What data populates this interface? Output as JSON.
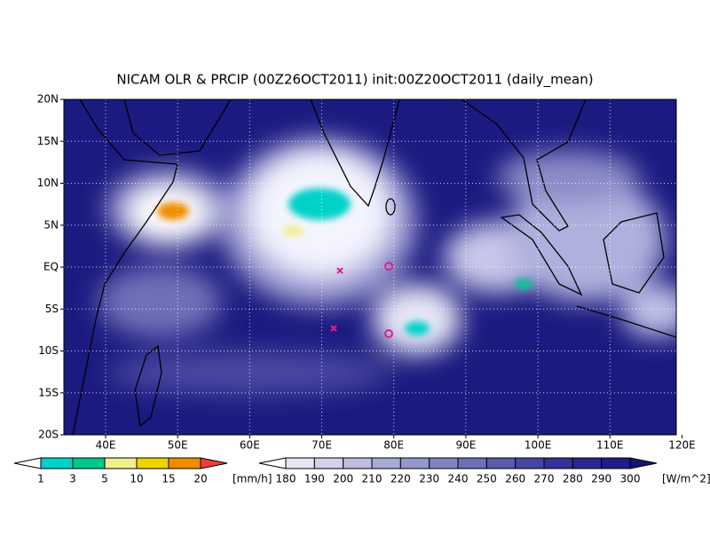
{
  "title": "NICAM OLR & PRCIP (00Z26OCT2011) init:00Z20OCT2011 (daily_mean)",
  "map": {
    "xtick_labels": [
      "40E",
      "50E",
      "60E",
      "70E",
      "80E",
      "90E",
      "100E",
      "110E",
      "120E"
    ],
    "ytick_labels": [
      "20N",
      "15N",
      "10N",
      "5N",
      "EQ",
      "5S",
      "10S",
      "15S",
      "20S"
    ]
  },
  "precip_colorbar": {
    "labels": [
      "1",
      "3",
      "5",
      "10",
      "15",
      "20"
    ],
    "unit": "[mm/h]",
    "colors": [
      "#ffffff",
      "#00d2c8",
      "#00c88c",
      "#f0f08c",
      "#f0d200",
      "#f08c00",
      "#f03c3c"
    ]
  },
  "olr_colorbar": {
    "labels": [
      "180",
      "190",
      "200",
      "210",
      "220",
      "230",
      "240",
      "250",
      "260",
      "270",
      "280",
      "290",
      "300"
    ],
    "unit": "[W/m^2]",
    "colors": [
      "#ffffff",
      "#e6e6f2",
      "#d2d2ea",
      "#bebee0",
      "#aaaad6",
      "#9696cc",
      "#8282c2",
      "#6e6eb8",
      "#5a5aae",
      "#4646a4",
      "#32329a",
      "#282890",
      "#1e1e86",
      "#14147a"
    ]
  }
}
